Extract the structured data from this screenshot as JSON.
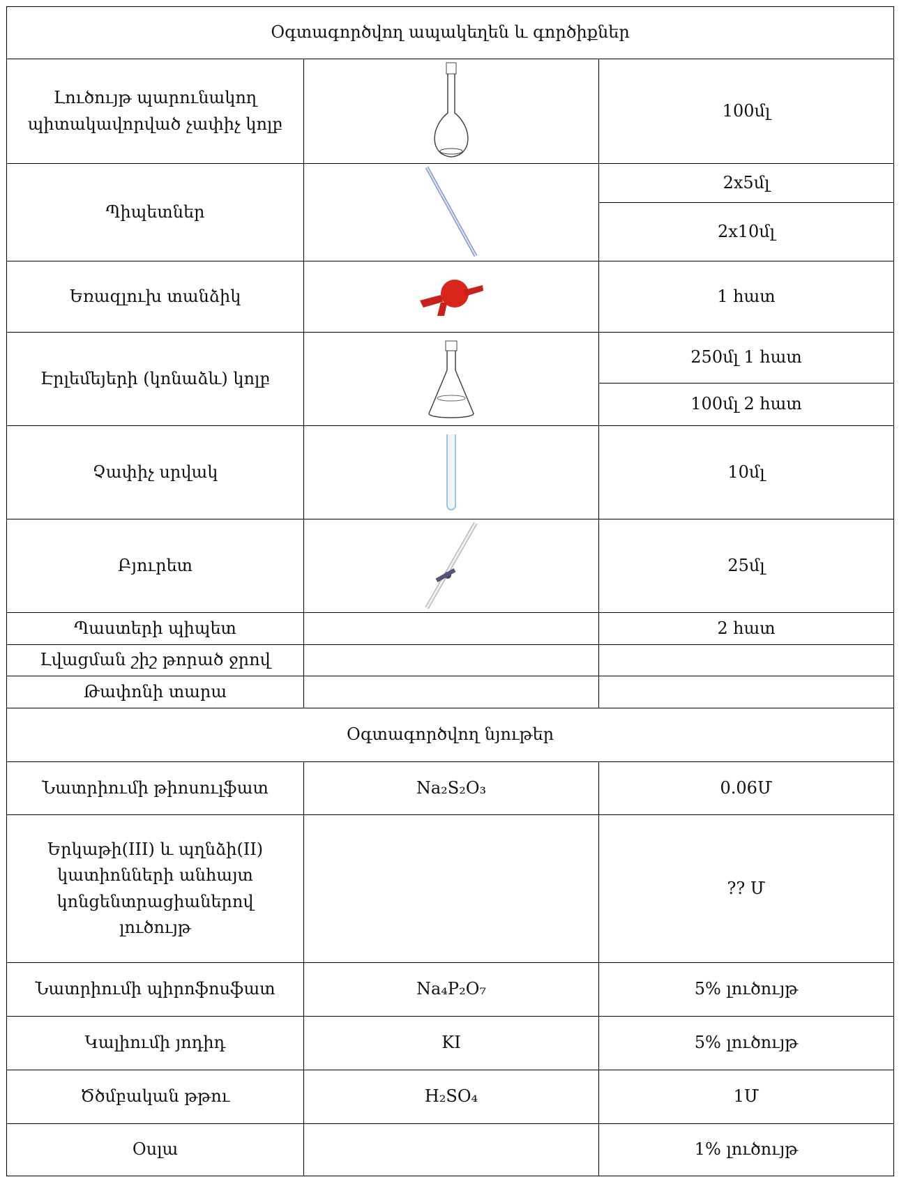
{
  "equipment_header": "Օգտագործվող ապակեղեն և գործիքներ",
  "equipment": [
    {
      "name": "Լուծույթ պարունակող պիտակավորված չափիչ կոլբ",
      "size": [
        "100մլ"
      ]
    },
    {
      "name": "Պիպետներ",
      "size": [
        "2x5մլ",
        "2x10մլ"
      ]
    },
    {
      "name": "Եռազլուխ տանձիկ",
      "size": [
        "1 հատ"
      ]
    },
    {
      "name": "Էրլեմեյերի (կոնաձև) կոլբ",
      "size": [
        "250մլ 1 հատ",
        "100մլ 2 հատ"
      ]
    },
    {
      "name": "Չափիչ սրվակ",
      "size": [
        "10մլ"
      ]
    },
    {
      "name": "Բյուրետ",
      "size": [
        "25մլ"
      ]
    },
    {
      "name": "Պաստերի պիպետ",
      "size": [
        "2 հատ"
      ]
    },
    {
      "name": "Լվացման շիշ թորած ջրով"
    },
    {
      "name": "Թափոնի տարա"
    }
  ],
  "materials_header": "Օգտագործվող նյութեր",
  "materials": [
    {
      "name": "Նատրիումի թիոսուլֆատ",
      "formula": "Na₂S₂O₃",
      "concentration": "0.06Մ"
    },
    {
      "name": "Երկաթի(III) և պղնձի(II) կատիոնների անհայտ կոնցենտրացիաներով լուծույթ",
      "concentration": "?? Մ"
    },
    {
      "name": "Նատրիումի պիրոֆոսֆատ",
      "formula": "Na₄P₂O₇",
      "concentration": "5% լուծույթ"
    },
    {
      "name": "Կալիումի յոդիդ",
      "formula": "KI",
      "concentration": "5% լուծույթ"
    },
    {
      "name": "Ծծմբական թթու",
      "formula": "H₂SO₄",
      "concentration": "1Մ"
    },
    {
      "name": "Օսլա",
      "concentration": "1% լուծույթ"
    }
  ]
}
